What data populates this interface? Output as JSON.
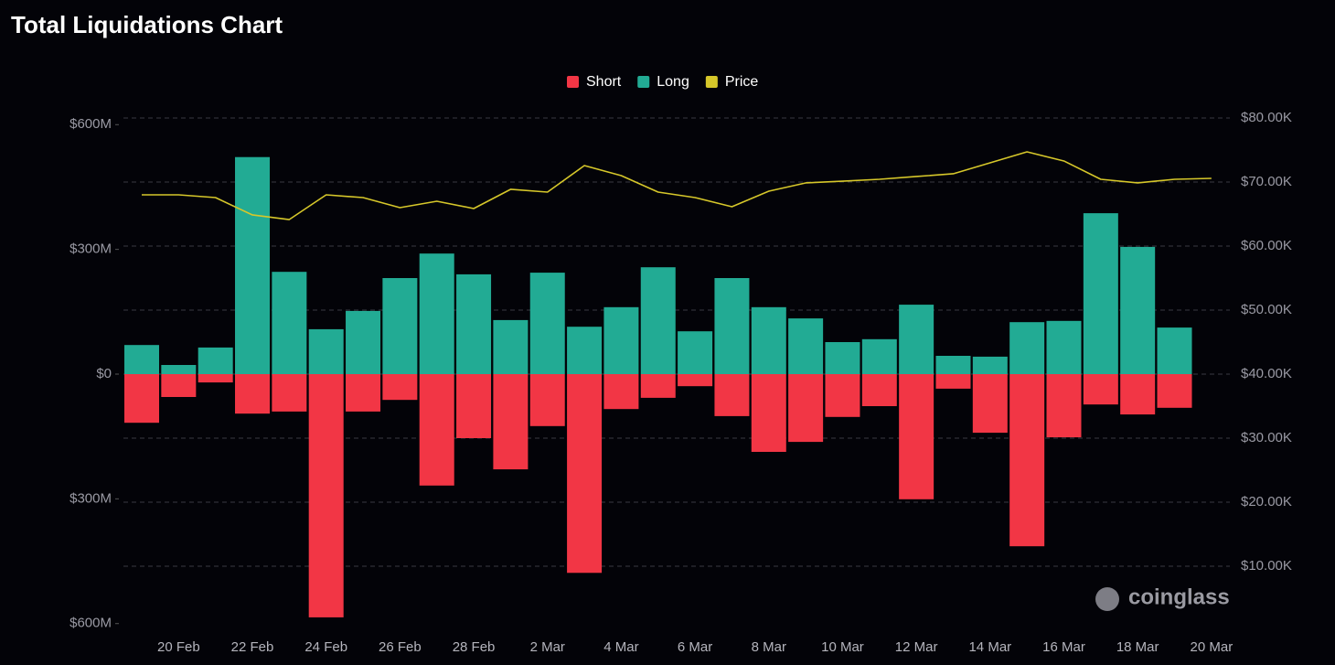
{
  "chart_data": {
    "type": "bar",
    "title": "Total Liquidations Chart",
    "watermark": "coinglass",
    "categories": [
      null,
      "20 Feb",
      null,
      "22 Feb",
      null,
      "24 Feb",
      null,
      "26 Feb",
      null,
      "28 Feb",
      null,
      "2 Mar",
      null,
      "4 Mar",
      null,
      "6 Mar",
      null,
      "8 Mar",
      null,
      "10 Mar",
      null,
      "12 Mar",
      null,
      "14 Mar",
      null,
      "16 Mar",
      null,
      "18 Mar",
      null,
      "20 Mar"
    ],
    "series": [
      {
        "name": "Short",
        "color": "#f23645",
        "values": [
          -117,
          -55,
          -20,
          -95,
          -90,
          -585,
          -90,
          -62,
          -268,
          -154,
          -229,
          -125,
          -478,
          -84,
          -57,
          -29,
          -101,
          -187,
          -163,
          -103,
          -77,
          -301,
          -35,
          -141,
          -414,
          -152,
          -73,
          -97,
          -81,
          null
        ]
      },
      {
        "name": "Long",
        "color": "#22ab94",
        "values": [
          70,
          22,
          64,
          522,
          246,
          108,
          152,
          231,
          290,
          240,
          130,
          244,
          114,
          161,
          257,
          103,
          231,
          161,
          134,
          77,
          84,
          167,
          44,
          42,
          125,
          128,
          387,
          306,
          112,
          null
        ]
      },
      {
        "name": "Price",
        "color": "#d6c72a",
        "axis": "y2",
        "values": [
          68000,
          68000,
          67570,
          64860,
          64140,
          68000,
          67570,
          66000,
          67000,
          65860,
          68860,
          68430,
          72570,
          71000,
          68430,
          67570,
          66140,
          68570,
          69860,
          70140,
          70430,
          70860,
          71290,
          73000,
          74710,
          73290,
          70430,
          69860,
          70430,
          70570
        ]
      }
    ],
    "ylim": [
      -616,
      616
    ],
    "yticks": [
      {
        "value": 600,
        "label": "$600M"
      },
      {
        "value": 300,
        "label": "$300M"
      },
      {
        "value": 0,
        "label": "$0"
      },
      {
        "value": -300,
        "label": "$300M"
      },
      {
        "value": -600,
        "label": "$600M"
      }
    ],
    "y2lim": [
      0,
      80000
    ],
    "y2ticks": [
      {
        "value": 80000,
        "label": "$80.00K"
      },
      {
        "value": 70000,
        "label": "$70.00K"
      },
      {
        "value": 60000,
        "label": "$60.00K"
      },
      {
        "value": 50000,
        "label": "$50.00K"
      },
      {
        "value": 40000,
        "label": "$40.00K"
      },
      {
        "value": 30000,
        "label": "$30.00K"
      },
      {
        "value": 20000,
        "label": "$20.00K"
      },
      {
        "value": 10000,
        "label": "$10.00K"
      }
    ],
    "grid": true,
    "legend": "top"
  }
}
